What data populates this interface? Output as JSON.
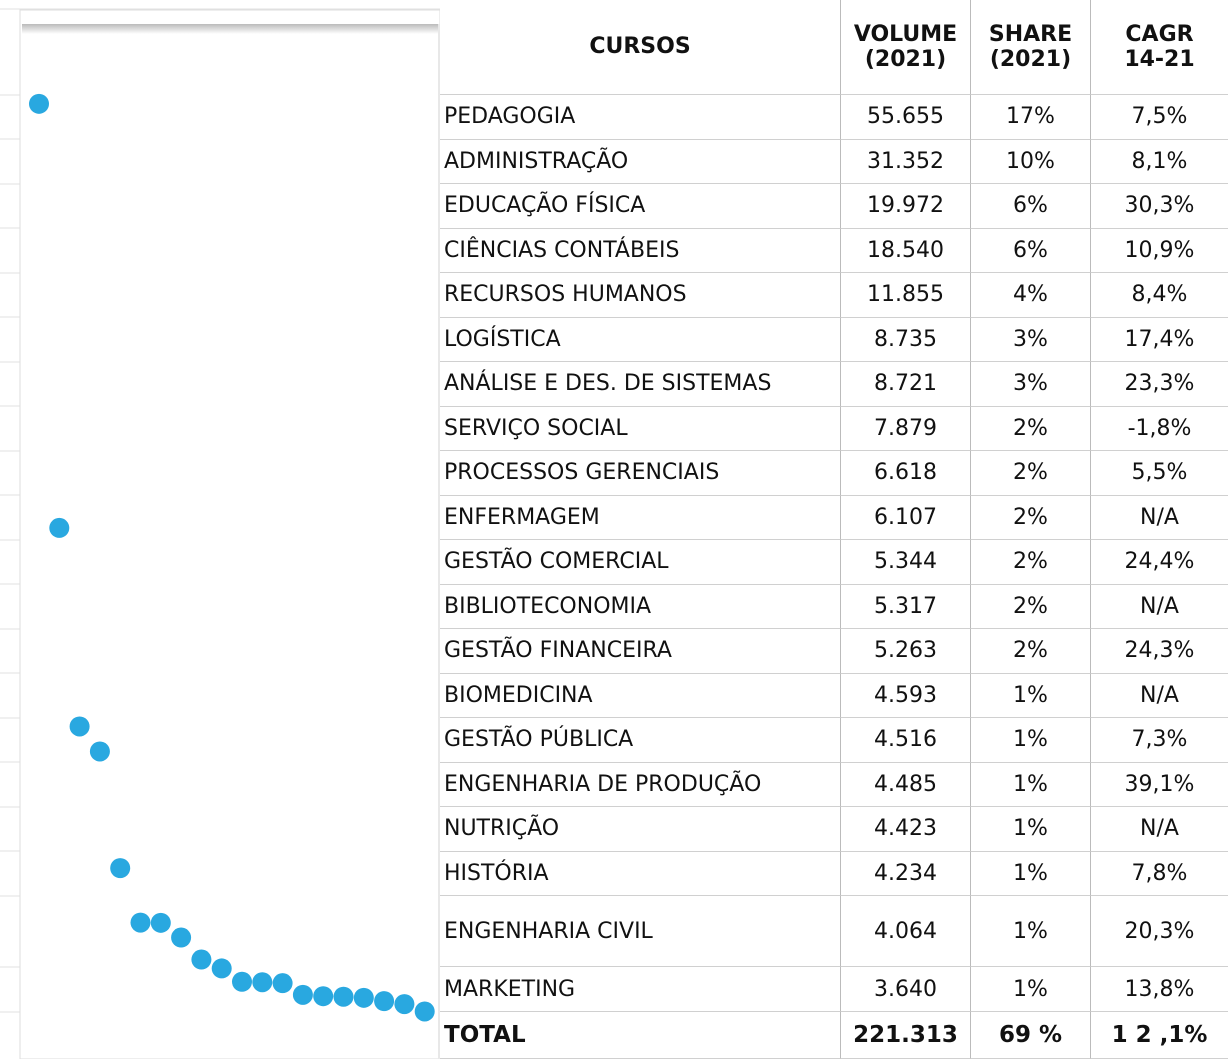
{
  "chart_data": {
    "type": "scatter",
    "categories": [
      "PEDAGOGIA",
      "ADMINISTRAÇÃO",
      "EDUCAÇÃO FÍSICA",
      "CIÊNCIAS CONTÁBEIS",
      "RECURSOS HUMANOS",
      "LOGÍSTICA",
      "ANÁLISE E DES. DE SISTEMAS",
      "SERVIÇO SOCIAL",
      "PROCESSOS GERENCIAIS",
      "ENFERMAGEM",
      "GESTÃO COMERCIAL",
      "BIBLIOTECONOMIA",
      "GESTÃO FINANCEIRA",
      "BIOMEDICINA",
      "GESTÃO PÚBLICA",
      "ENGENHARIA DE PRODUÇÃO",
      "NUTRIÇÃO",
      "HISTÓRIA",
      "ENGENHARIA CIVIL",
      "MARKETING"
    ],
    "values": [
      55655,
      31352,
      19972,
      18540,
      11855,
      8735,
      8721,
      7879,
      6618,
      6107,
      5344,
      5317,
      5263,
      4593,
      4516,
      4485,
      4423,
      4234,
      4064,
      3640
    ],
    "value_labels": [
      "55.655",
      "31.352",
      "19.972",
      "18.540",
      "11.855",
      "8.735",
      "8.721",
      "7.879",
      "6.618",
      "6.107",
      "5.344",
      "5.317",
      "5.263",
      "4.593",
      "4.516",
      "4.485",
      "4.423",
      "4.234",
      "4.064",
      "3.640"
    ],
    "color": "#29a8e0",
    "ylim": [
      0,
      60000
    ]
  },
  "table": {
    "headers": [
      "CURSOS",
      "VOLUME\n(2021)",
      "SHARE\n(2021)",
      "CAGR\n14-21"
    ],
    "share": [
      "17%",
      "10%",
      "6%",
      "6%",
      "4%",
      "3%",
      "3%",
      "2%",
      "2%",
      "2%",
      "2%",
      "2%",
      "2%",
      "1%",
      "1%",
      "1%",
      "1%",
      "1%",
      "1%",
      "1%"
    ],
    "cagr": [
      "7,5%",
      "8,1%",
      "30,3%",
      "10,9%",
      "8,4%",
      "17,4%",
      "23,3%",
      "-1,8%",
      "5,5%",
      "N/A",
      "24,4%",
      "N/A",
      "24,3%",
      "N/A",
      "7,3%",
      "39,1%",
      "N/A",
      "7,8%",
      "20,3%",
      "13,8%"
    ],
    "total": [
      "TOTAL",
      "221.313",
      "69 %",
      "1 2 ,1%"
    ]
  }
}
